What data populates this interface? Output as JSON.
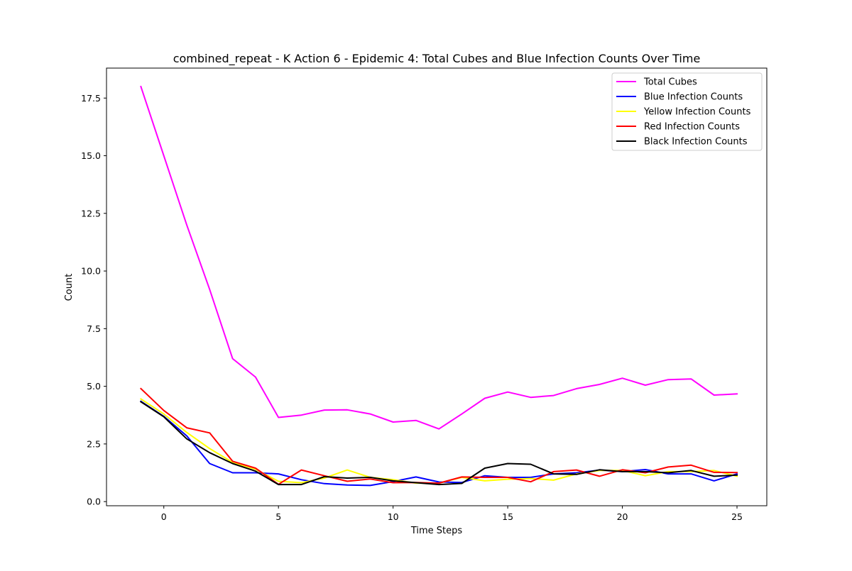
{
  "chart_data": {
    "type": "line",
    "title": "combined_repeat - K Action 6 - Epidemic 4: Total Cubes and Blue Infection Counts Over Time",
    "xlabel": "Time Steps",
    "ylabel": "Count",
    "xlim": [
      -2.5,
      26.3
    ],
    "ylim": [
      -0.18,
      18.8
    ],
    "xticks": [
      0,
      5,
      10,
      15,
      20,
      25
    ],
    "xtick_labels": [
      "0",
      "5",
      "10",
      "15",
      "20",
      "25"
    ],
    "yticks": [
      0.0,
      2.5,
      5.0,
      7.5,
      10.0,
      12.5,
      15.0,
      17.5
    ],
    "ytick_labels": [
      "0.0",
      "2.5",
      "5.0",
      "7.5",
      "10.0",
      "12.5",
      "15.0",
      "17.5"
    ],
    "grid": false,
    "legend_position": "top-right",
    "x": [
      -1,
      0,
      1,
      2,
      3,
      4,
      5,
      6,
      7,
      8,
      9,
      10,
      11,
      12,
      13,
      14,
      15,
      16,
      17,
      18,
      19,
      20,
      21,
      22,
      23,
      24,
      25
    ],
    "series": [
      {
        "name": "Total Cubes",
        "color": "#ff00ff",
        "values": [
          18.0,
          15.0,
          12.0,
          9.2,
          6.2,
          5.4,
          3.65,
          3.75,
          3.97,
          3.98,
          3.8,
          3.45,
          3.52,
          3.15,
          3.8,
          4.48,
          4.75,
          4.52,
          4.6,
          4.9,
          5.08,
          5.35,
          5.05,
          5.29,
          5.32,
          4.62,
          4.67
        ]
      },
      {
        "name": "Blue Infection Counts",
        "color": "#0000ff",
        "values": [
          4.35,
          3.7,
          2.85,
          1.65,
          1.25,
          1.25,
          1.2,
          0.95,
          0.78,
          0.72,
          0.7,
          0.87,
          1.07,
          0.85,
          0.83,
          1.12,
          1.05,
          1.05,
          1.2,
          1.25,
          1.36,
          1.3,
          1.39,
          1.2,
          1.2,
          0.9,
          1.2
        ]
      },
      {
        "name": "Yellow Infection Counts",
        "color": "#ffff00",
        "values": [
          4.45,
          3.8,
          3.0,
          2.3,
          1.7,
          1.4,
          0.88,
          0.82,
          1.02,
          1.37,
          1.05,
          0.95,
          0.8,
          0.8,
          1.05,
          0.9,
          0.97,
          1.0,
          0.93,
          1.2,
          1.35,
          1.35,
          1.12,
          1.3,
          1.3,
          1.35,
          1.1
        ]
      },
      {
        "name": "Red Infection Counts",
        "color": "#ff0000",
        "values": [
          4.9,
          3.95,
          3.2,
          2.98,
          1.75,
          1.45,
          0.75,
          1.37,
          1.12,
          0.88,
          0.98,
          0.82,
          0.83,
          0.8,
          1.07,
          1.05,
          1.05,
          0.86,
          1.3,
          1.37,
          1.1,
          1.38,
          1.25,
          1.5,
          1.58,
          1.27,
          1.26
        ]
      },
      {
        "name": "Black Infection Counts",
        "color": "#000000",
        "values": [
          4.33,
          3.68,
          2.72,
          2.12,
          1.65,
          1.32,
          0.74,
          0.74,
          1.08,
          1.02,
          1.05,
          0.9,
          0.82,
          0.74,
          0.79,
          1.45,
          1.65,
          1.62,
          1.2,
          1.18,
          1.38,
          1.3,
          1.3,
          1.25,
          1.35,
          1.1,
          1.15
        ]
      }
    ]
  }
}
